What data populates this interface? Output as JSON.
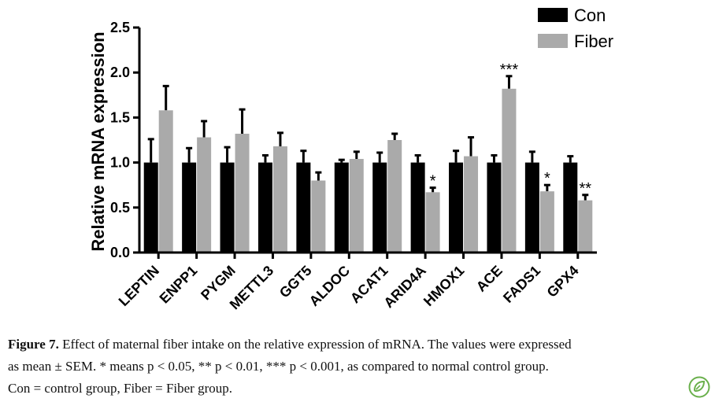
{
  "chart_data": {
    "type": "bar",
    "ylabel": "Relative mRNA expression",
    "ylim": [
      0,
      2.5
    ],
    "yticks": [
      "0.0",
      "0.5",
      "1.0",
      "1.5",
      "2.0",
      "2.5"
    ],
    "categories": [
      "LEPTIN",
      "ENPP1",
      "PYGM",
      "METTL3",
      "GGT5",
      "ALDOC",
      "ACAT1",
      "ARID4A",
      "HMOX1",
      "ACE",
      "FADS1",
      "GPX4"
    ],
    "series": [
      {
        "name": "Con",
        "color": "#000000",
        "values": [
          1.0,
          1.0,
          1.0,
          1.0,
          1.0,
          1.0,
          1.0,
          1.0,
          1.0,
          1.0,
          1.0,
          1.0
        ],
        "errors": [
          0.26,
          0.16,
          0.17,
          0.08,
          0.13,
          0.03,
          0.11,
          0.08,
          0.13,
          0.08,
          0.12,
          0.07
        ]
      },
      {
        "name": "Fiber",
        "color": "#aaaaaa",
        "values": [
          1.58,
          1.28,
          1.32,
          1.18,
          0.8,
          1.04,
          1.25,
          0.67,
          1.07,
          1.82,
          0.68,
          0.58
        ],
        "errors": [
          0.27,
          0.18,
          0.27,
          0.15,
          0.09,
          0.08,
          0.07,
          0.05,
          0.21,
          0.14,
          0.07,
          0.06
        ]
      }
    ],
    "annotations": [
      "",
      "",
      "",
      "",
      "",
      "",
      "",
      "*",
      "",
      "***",
      "*",
      "**"
    ],
    "legend": "top-right"
  },
  "caption": {
    "label": "Figure 7.",
    "line1": " Effect of maternal fiber intake on the relative expression of mRNA. The values were expressed",
    "line2": "as mean ± SEM. * means p < 0.05, ** p < 0.01, *** p < 0.001, as compared to normal control group.",
    "line3": "Con = control group, Fiber = Fiber group."
  },
  "logo_icon": "leaf-check-icon"
}
